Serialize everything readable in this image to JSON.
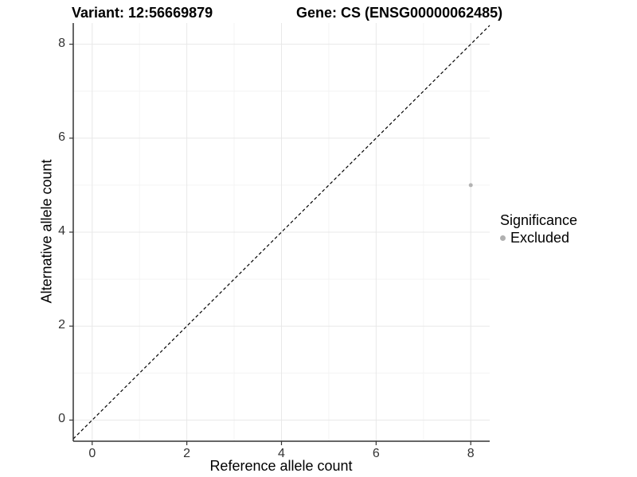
{
  "chart_data": {
    "type": "scatter",
    "title_left": "Variant: 12:56669879",
    "title_right": "Gene: CS (ENSG00000062485)",
    "xlabel": "Reference allele count",
    "ylabel": "Alternative allele count",
    "xlim": [
      -0.4,
      8.4
    ],
    "ylim": [
      -0.45,
      8.45
    ],
    "x_ticks": [
      0,
      2,
      4,
      6,
      8
    ],
    "y_ticks": [
      0,
      2,
      4,
      6,
      8
    ],
    "x_minor_ticks": [
      1,
      3,
      5,
      7
    ],
    "y_minor_ticks": [
      1,
      3,
      5,
      7
    ],
    "grid": true,
    "reference_line": {
      "type": "identity",
      "style": "dashed",
      "color": "#000000"
    },
    "series": [
      {
        "name": "Excluded",
        "color": "#b3b3b3",
        "points": [
          {
            "x": 8,
            "y": 5
          }
        ]
      }
    ],
    "legend": {
      "title": "Significance",
      "position": "right",
      "items": [
        {
          "label": "Excluded",
          "color": "#b0b0b0"
        }
      ]
    }
  },
  "colors": {
    "major_grid": "#e8e8e8",
    "minor_grid": "#f4f4f4",
    "axis_line": "#333333",
    "tick_mark": "#333333",
    "tick_text": "#333333",
    "background": "#ffffff"
  }
}
